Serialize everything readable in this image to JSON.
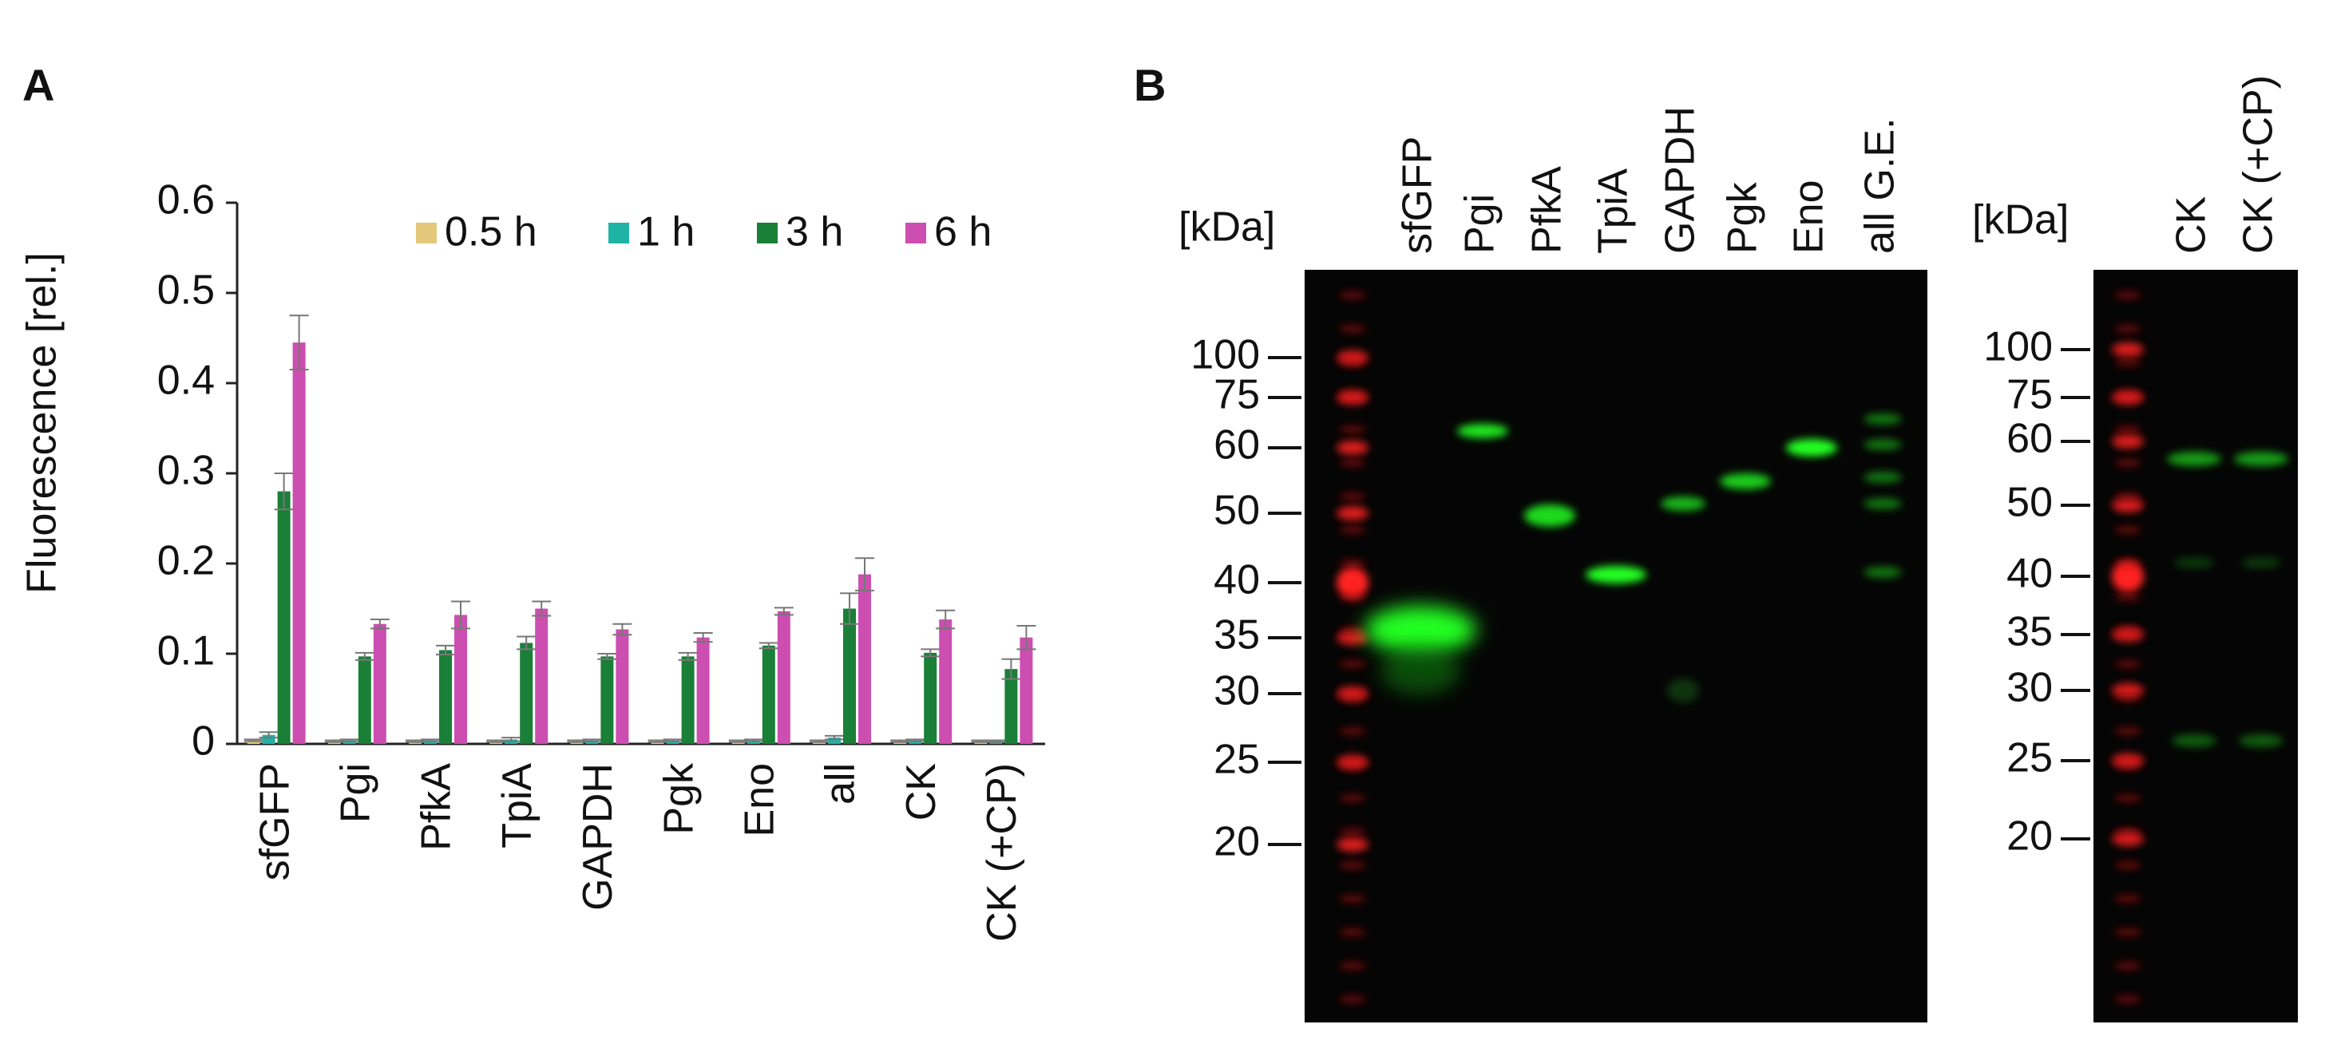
{
  "panel_labels": [
    "A",
    "B"
  ],
  "chart_data": {
    "type": "bar",
    "y_label": "Fluorescence [rel.]",
    "categories": [
      "sfGFP",
      "Pgi",
      "PfkA",
      "TpiA",
      "GAPDH",
      "Pgk",
      "Eno",
      "all",
      "CK",
      "CK (+CP)"
    ],
    "series": [
      {
        "name": "0.5 h",
        "color": "#e3c77a",
        "values": [
          0.004,
          0.003,
          0.003,
          0.003,
          0.003,
          0.003,
          0.003,
          0.003,
          0.003,
          0.003
        ],
        "errors": [
          0.001,
          0.001,
          0.001,
          0.001,
          0.001,
          0.001,
          0.001,
          0.001,
          0.001,
          0.001
        ]
      },
      {
        "name": "1 h",
        "color": "#1fb3a6",
        "values": [
          0.01,
          0.004,
          0.004,
          0.005,
          0.004,
          0.004,
          0.004,
          0.007,
          0.004,
          0.003
        ],
        "errors": [
          0.003,
          0.001,
          0.001,
          0.002,
          0.001,
          0.001,
          0.001,
          0.002,
          0.001,
          0.001
        ]
      },
      {
        "name": "3 h",
        "color": "#1a7f37",
        "values": [
          0.28,
          0.097,
          0.104,
          0.112,
          0.097,
          0.097,
          0.109,
          0.15,
          0.101,
          0.083
        ],
        "errors": [
          0.02,
          0.004,
          0.005,
          0.007,
          0.003,
          0.004,
          0.003,
          0.017,
          0.004,
          0.011
        ]
      },
      {
        "name": "6 h",
        "color": "#cc4eb0",
        "values": [
          0.445,
          0.133,
          0.143,
          0.15,
          0.127,
          0.118,
          0.147,
          0.188,
          0.138,
          0.118
        ],
        "errors": [
          0.03,
          0.005,
          0.015,
          0.008,
          0.006,
          0.005,
          0.004,
          0.018,
          0.01,
          0.013
        ]
      }
    ],
    "ylim": [
      0,
      0.6
    ],
    "yticks": [
      0,
      0.1,
      0.2,
      0.3,
      0.4,
      0.5,
      0.6
    ],
    "legend": "top-right"
  },
  "blot": {
    "left": {
      "unit": "[kDa]",
      "markers": [
        100,
        75,
        60,
        50,
        40,
        35,
        30,
        25,
        20
      ],
      "lanes": [
        "sfGFP",
        "Pgi",
        "PfkA",
        "TpiA",
        "GAPDH",
        "Pgk",
        "Eno",
        "all G.E."
      ]
    },
    "right": {
      "unit": "[kDa]",
      "markers": [
        100,
        75,
        60,
        50,
        40,
        35,
        30,
        25,
        20
      ],
      "lanes": [
        "CK",
        "CK (+CP)"
      ]
    }
  }
}
